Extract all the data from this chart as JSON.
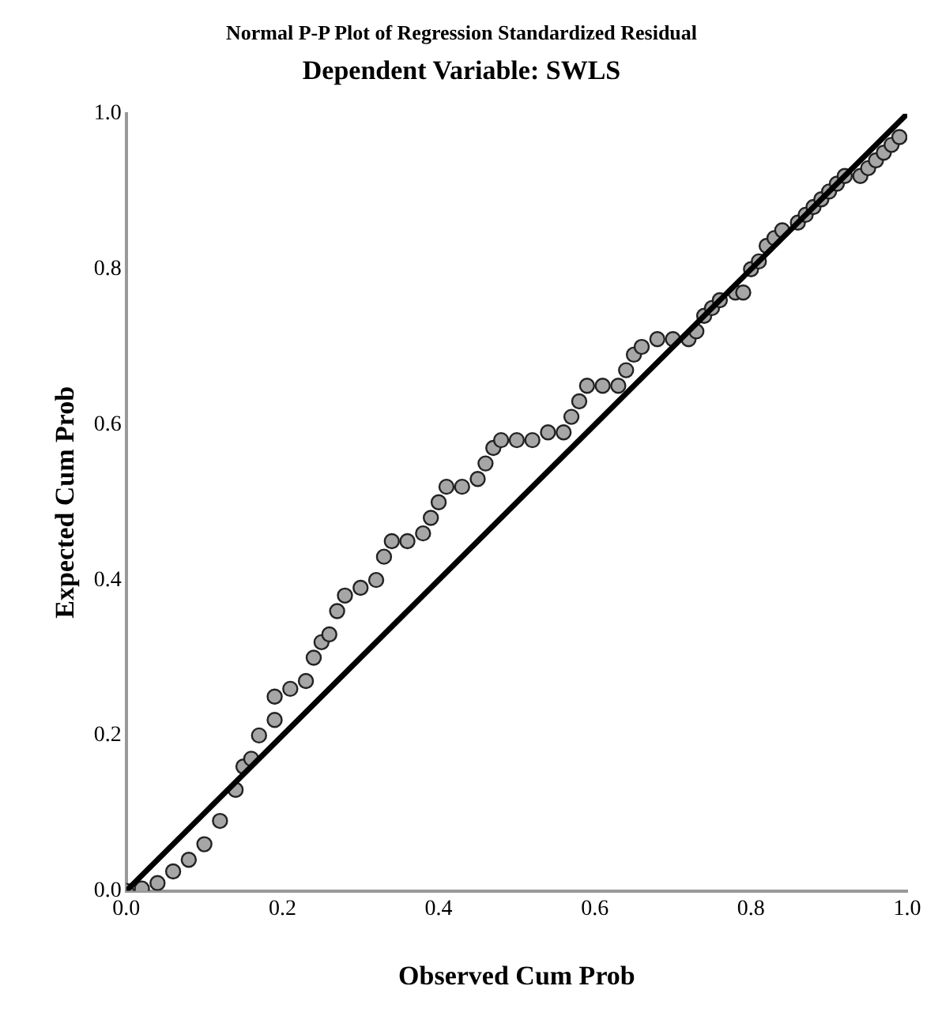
{
  "chart_data": {
    "type": "scatter",
    "title": "Normal P-P Plot of Regression Standardized Residual",
    "subtitle": "Dependent Variable: SWLS",
    "xlabel": "Observed Cum Prob",
    "ylabel": "Expected Cum Prob",
    "xlim": [
      0,
      1
    ],
    "ylim": [
      0,
      1
    ],
    "xticks": [
      {
        "value": 0,
        "label": "0.0"
      },
      {
        "value": 0.2,
        "label": "0.2"
      },
      {
        "value": 0.4,
        "label": "0.4"
      },
      {
        "value": 0.6,
        "label": "0.6"
      },
      {
        "value": 0.8,
        "label": "0.8"
      },
      {
        "value": 1,
        "label": "1.0"
      }
    ],
    "yticks": [
      {
        "value": 0,
        "label": "0.0"
      },
      {
        "value": 0.2,
        "label": "0.2"
      },
      {
        "value": 0.4,
        "label": "0.4"
      },
      {
        "value": 0.6,
        "label": "0.6"
      },
      {
        "value": 0.8,
        "label": "0.8"
      },
      {
        "value": 1,
        "label": "1.0"
      }
    ],
    "grid": false,
    "legend": false,
    "marker": "circle",
    "series": [
      {
        "color": "#a6a6a6",
        "x": [
          0,
          0.02,
          0.04,
          0.06,
          0.08,
          0.1,
          0.12,
          0.14,
          0.15,
          0.16,
          0.17,
          0.19,
          0.19,
          0.21,
          0.23,
          0.24,
          0.25,
          0.26,
          0.27,
          0.28,
          0.3,
          0.32,
          0.33,
          0.34,
          0.36,
          0.38,
          0.39,
          0.4,
          0.41,
          0.43,
          0.45,
          0.46,
          0.47,
          0.48,
          0.5,
          0.52,
          0.54,
          0.56,
          0.57,
          0.58,
          0.59,
          0.61,
          0.63,
          0.64,
          0.65,
          0.66,
          0.68,
          0.7,
          0.72,
          0.73,
          0.74,
          0.75,
          0.76,
          0.78,
          0.79,
          0.8,
          0.81,
          0.82,
          0.83,
          0.84,
          0.86,
          0.87,
          0.88,
          0.89,
          0.9,
          0.91,
          0.92,
          0.94,
          0.95,
          0.96,
          0.97,
          0.98,
          0.99
        ],
        "values": [
          0,
          0.003,
          0.01,
          0.025,
          0.04,
          0.06,
          0.09,
          0.13,
          0.16,
          0.17,
          0.2,
          0.22,
          0.25,
          0.26,
          0.27,
          0.3,
          0.32,
          0.33,
          0.36,
          0.38,
          0.39,
          0.4,
          0.43,
          0.45,
          0.45,
          0.46,
          0.48,
          0.5,
          0.52,
          0.52,
          0.53,
          0.55,
          0.57,
          0.58,
          0.58,
          0.58,
          0.59,
          0.59,
          0.61,
          0.63,
          0.65,
          0.65,
          0.65,
          0.67,
          0.69,
          0.7,
          0.71,
          0.71,
          0.71,
          0.72,
          0.74,
          0.75,
          0.76,
          0.77,
          0.77,
          0.8,
          0.81,
          0.83,
          0.84,
          0.85,
          0.86,
          0.87,
          0.88,
          0.89,
          0.9,
          0.91,
          0.92,
          0.92,
          0.93,
          0.94,
          0.95,
          0.96,
          0.97
        ]
      },
      {
        "type": "line",
        "color": "#000000",
        "x": [
          0,
          1
        ],
        "values": [
          0,
          1
        ],
        "marker": "none",
        "line_style": "solid"
      }
    ]
  }
}
